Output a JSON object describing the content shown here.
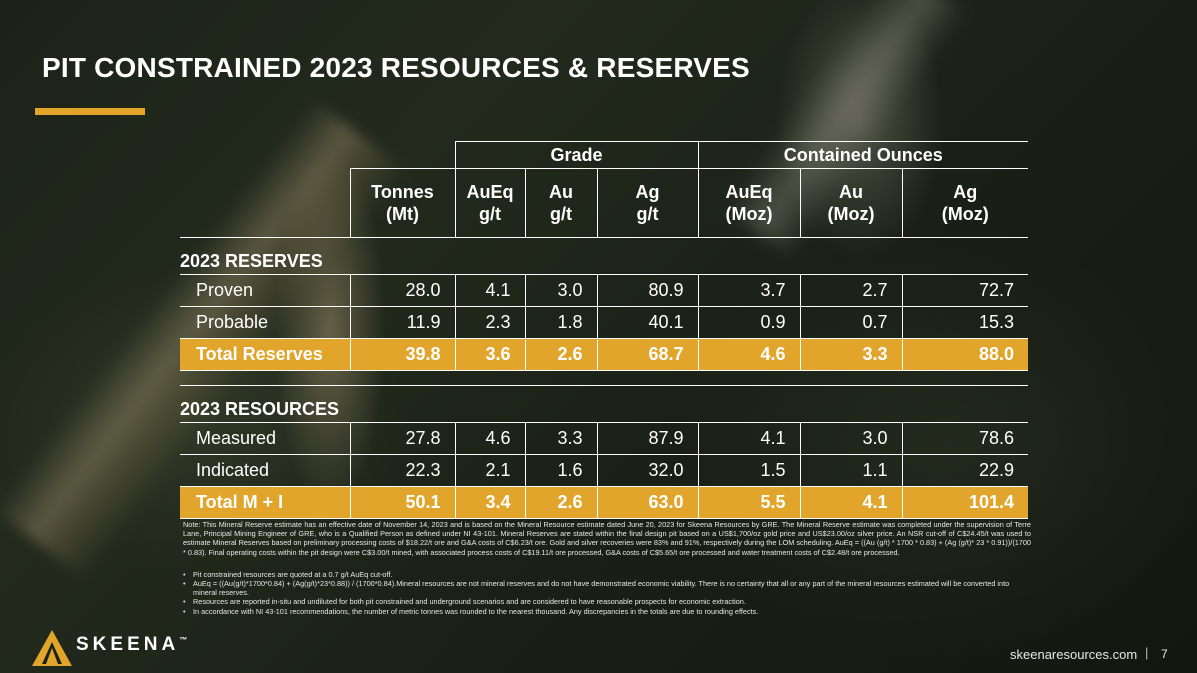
{
  "title": "PIT CONSTRAINED 2023 RESOURCES & RESERVES",
  "table": {
    "group_headers": {
      "grade": "Grade",
      "contained": "Contained Ounces"
    },
    "columns": [
      {
        "line1": "Tonnes",
        "line2": "(Mt)"
      },
      {
        "line1": "AuEq",
        "line2": "g/t"
      },
      {
        "line1": "Au",
        "line2": "g/t"
      },
      {
        "line1": "Ag",
        "line2": "g/t"
      },
      {
        "line1": "AuEq",
        "line2": "(Moz)"
      },
      {
        "line1": "Au",
        "line2": "(Moz)"
      },
      {
        "line1": "Ag",
        "line2": "(Moz)"
      }
    ],
    "reserves": {
      "heading": "2023 RESERVES",
      "rows": [
        {
          "label": "Proven",
          "values": [
            "28.0",
            "4.1",
            "3.0",
            "80.9",
            "3.7",
            "2.7",
            "72.7"
          ]
        },
        {
          "label": "Probable",
          "values": [
            "11.9",
            "2.3",
            "1.8",
            "40.1",
            "0.9",
            "0.7",
            "15.3"
          ]
        }
      ],
      "total": {
        "label": "Total Reserves",
        "values": [
          "39.8",
          "3.6",
          "2.6",
          "68.7",
          "4.6",
          "3.3",
          "88.0"
        ]
      }
    },
    "resources": {
      "heading": "2023 RESOURCES",
      "rows": [
        {
          "label": "Measured",
          "values": [
            "27.8",
            "4.6",
            "3.3",
            "87.9",
            "4.1",
            "3.0",
            "78.6"
          ]
        },
        {
          "label": "Indicated",
          "values": [
            "22.3",
            "2.1",
            "1.6",
            "32.0",
            "1.5",
            "1.1",
            "22.9"
          ]
        }
      ],
      "total": {
        "label": "Total M + I",
        "values": [
          "50.1",
          "3.4",
          "2.6",
          "63.0",
          "5.5",
          "4.1",
          "101.4"
        ]
      }
    }
  },
  "notes": {
    "paragraph": "Note: This Mineral Reserve estimate has an effective date of November 14, 2023 and is based on the Mineral Resource estimate dated June 20, 2023 for Skeena Resources by GRE. The Mineral Reserve estimate was completed under the supervision of Terre Lane, Principal Mining Engineer of GRE, who is a Qualified Person as defined under NI 43-101. Mineral Reserves are stated within the final design pit based on a US$1,700/oz gold price and US$23.00/oz silver price. An NSR cut-off of C$24.45/t was used to estimate Mineral Reserves based on preliminary processing costs of $18.22/t ore and G&A costs of C$6.23/t ore. Gold and silver recoveries were 83% and 91%, respectively during the LOM scheduling. AuEq = ((Au (g/t) * 1700 * 0.83) + (Ag (g/t)* 23 * 0.91))/(1700 * 0.83). Final operating costs within the pit design were C$3.00/t mined, with associated process costs of C$19.11/t ore processed, G&A costs of C$5.65/t ore processed and water treatment costs of C$2.48/t ore processed.",
    "bullets": [
      "Pit constrained resources are quoted at a 0.7 g/t AuEq cut-off.",
      "AuEq = ((Au(g/t)*1700*0.84) + (Ag(g/t)*23*0.88)) / (1700*0.84).Mineral resources are not mineral reserves and do not have demonstrated economic viability. There is no certainty that all or any part of the mineral resources estimated will be converted into mineral reserves.",
      "Resources are reported in-situ and undiluted for both pit constrained and underground scenarios and are considered to have reasonable prospects for economic extraction.",
      "In accordance with NI 43-101 recommendations, the number of metric tonnes was rounded to the nearest thousand. Any discrepancies in the totals are due to rounding effects."
    ],
    "bullet_glyph": "•"
  },
  "footer": {
    "logo_text": "SKEENA",
    "trademark": "™",
    "url": "skeenaresources.com",
    "separator": "|",
    "page_number": "7"
  },
  "colors": {
    "accent": "#e2a52b",
    "text": "#ffffff"
  }
}
